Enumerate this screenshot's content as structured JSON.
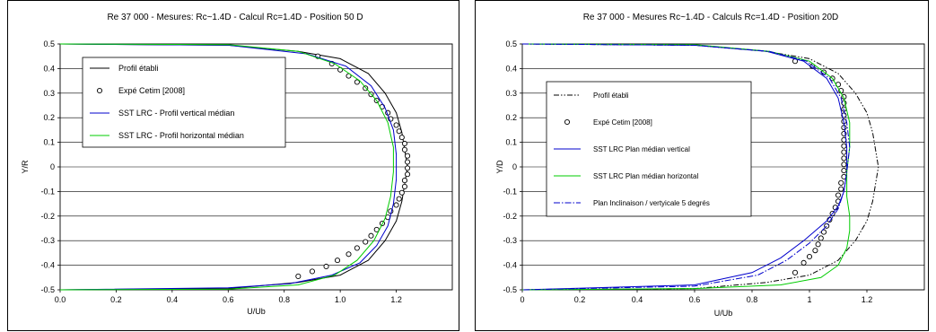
{
  "chart_data": [
    {
      "type": "line",
      "title": "Re 37 000 - Mesures: Rc~1.4D - Calcul Rc=1.4D - Position 50 D",
      "xlabel": "U/Ub",
      "ylabel": "Y/R",
      "xlim": [
        0,
        1.4
      ],
      "ylim": [
        -0.5,
        0.5
      ],
      "xticks": [
        "0.0",
        "0.2",
        "0.4",
        "0.6",
        "0.8",
        "1.0",
        "1.2"
      ],
      "yticks": [
        "0.5",
        "0.4",
        "0.3",
        "0.2",
        "0.1",
        "0",
        "-0.1",
        "-0.2",
        "-0.3",
        "-0.4",
        "-0.5"
      ],
      "grid": "horizontal",
      "legend_position": "top-left",
      "series": [
        {
          "name": "Profil établi",
          "style": "solid",
          "color": "#000000",
          "x": [
            0,
            0.6,
            0.85,
            1.0,
            1.1,
            1.16,
            1.2,
            1.22,
            1.23,
            1.24,
            1.23,
            1.22,
            1.2,
            1.16,
            1.1,
            1.0,
            0.85,
            0.6,
            0
          ],
          "y": [
            0.5,
            0.495,
            0.47,
            0.44,
            0.38,
            0.3,
            0.22,
            0.14,
            0.07,
            0,
            -0.07,
            -0.14,
            -0.22,
            -0.3,
            -0.38,
            -0.44,
            -0.47,
            -0.495,
            -0.5
          ]
        },
        {
          "name": "Expé Cetim [2008]",
          "style": "markers",
          "color": "#000000",
          "x": [
            0.92,
            0.97,
            1.0,
            1.03,
            1.06,
            1.09,
            1.11,
            1.13,
            1.15,
            1.17,
            1.18,
            1.2,
            1.21,
            1.22,
            1.23,
            1.23,
            1.24,
            1.24,
            1.24,
            1.24,
            1.23,
            1.23,
            1.22,
            1.21,
            1.2,
            1.18,
            1.17,
            1.15,
            1.13,
            1.11,
            1.09,
            1.06,
            1.03,
            0.99,
            0.95,
            0.9,
            0.85
          ],
          "y": [
            0.45,
            0.42,
            0.395,
            0.37,
            0.345,
            0.32,
            0.295,
            0.27,
            0.245,
            0.22,
            0.195,
            0.17,
            0.145,
            0.12,
            0.095,
            0.07,
            0.045,
            0.02,
            -0.005,
            -0.03,
            -0.055,
            -0.08,
            -0.105,
            -0.13,
            -0.155,
            -0.18,
            -0.205,
            -0.23,
            -0.255,
            -0.28,
            -0.305,
            -0.33,
            -0.355,
            -0.38,
            -0.405,
            -0.425,
            -0.445
          ]
        },
        {
          "name": "SST LRC - Profil vertical médian",
          "style": "solid",
          "color": "#0000CC",
          "x": [
            0,
            0.6,
            0.88,
            1.02,
            1.11,
            1.16,
            1.19,
            1.2,
            1.2,
            1.19,
            1.17,
            1.13,
            1.07,
            0.97,
            0.82,
            0.6,
            0
          ],
          "y": [
            0.5,
            0.495,
            0.46,
            0.41,
            0.33,
            0.24,
            0.15,
            0.05,
            -0.05,
            -0.15,
            -0.24,
            -0.32,
            -0.39,
            -0.44,
            -0.475,
            -0.492,
            -0.5
          ]
        },
        {
          "name": "SST LRC - Profil horizontal médian",
          "style": "solid",
          "color": "#00CC00",
          "x": [
            0,
            0.6,
            0.85,
            0.98,
            1.07,
            1.13,
            1.17,
            1.19,
            1.19,
            1.18,
            1.16,
            1.12,
            1.06,
            0.98,
            0.85,
            0.6,
            0
          ],
          "y": [
            0.5,
            0.497,
            0.47,
            0.42,
            0.35,
            0.27,
            0.18,
            0.08,
            -0.02,
            -0.12,
            -0.21,
            -0.3,
            -0.38,
            -0.44,
            -0.48,
            -0.497,
            -0.5
          ]
        }
      ],
      "legend_entries": [
        "Profil établi",
        "Expé Cetim [2008]",
        "SST LRC - Profil vertical médian",
        "SST LRC - Profil horizontal médian"
      ]
    },
    {
      "type": "line",
      "title": "Re 37 000 - Mesures Rc~1.4D - Calculs Rc=1.4D - Position 20D",
      "xlabel": "U/Ub",
      "ylabel": "Y/D",
      "xlim": [
        0,
        1.4
      ],
      "ylim": [
        -0.5,
        0.5
      ],
      "xticks": [
        "0",
        "0.2",
        "0.4",
        "0.6",
        "0.8",
        "1",
        "1.2"
      ],
      "yticks": [
        "0.5",
        "0.4",
        "0.3",
        "0.2",
        "0.1",
        "0",
        "-0.1",
        "-0.2",
        "-0.3",
        "-0.4",
        "-0.5"
      ],
      "grid": "horizontal",
      "legend_position": "center-left",
      "series": [
        {
          "name": "Profil établi",
          "style": "dash-dot-dot",
          "color": "#000000",
          "x": [
            0,
            0.6,
            0.85,
            1.0,
            1.1,
            1.16,
            1.2,
            1.22,
            1.23,
            1.24,
            1.23,
            1.22,
            1.2,
            1.16,
            1.1,
            1.0,
            0.85,
            0.6,
            0
          ],
          "y": [
            0.5,
            0.495,
            0.47,
            0.44,
            0.38,
            0.3,
            0.22,
            0.14,
            0.07,
            0,
            -0.07,
            -0.14,
            -0.22,
            -0.3,
            -0.38,
            -0.44,
            -0.47,
            -0.495,
            -0.5
          ]
        },
        {
          "name": "Expé Cetim [2008]",
          "style": "markers",
          "color": "#000000",
          "x": [
            0.95,
            1.01,
            1.05,
            1.08,
            1.1,
            1.11,
            1.12,
            1.12,
            1.12,
            1.12,
            1.12,
            1.12,
            1.12,
            1.12,
            1.12,
            1.12,
            1.12,
            1.12,
            1.12,
            1.12,
            1.11,
            1.11,
            1.1,
            1.1,
            1.09,
            1.08,
            1.07,
            1.06,
            1.05,
            1.04,
            1.03,
            1.02,
            1.0,
            0.98,
            0.95
          ],
          "y": [
            0.43,
            0.41,
            0.385,
            0.36,
            0.335,
            0.31,
            0.285,
            0.26,
            0.235,
            0.21,
            0.185,
            0.16,
            0.135,
            0.11,
            0.085,
            0.06,
            0.035,
            0.01,
            -0.015,
            -0.04,
            -0.065,
            -0.09,
            -0.115,
            -0.14,
            -0.165,
            -0.19,
            -0.215,
            -0.24,
            -0.265,
            -0.29,
            -0.315,
            -0.34,
            -0.365,
            -0.39,
            -0.43
          ]
        },
        {
          "name": "SST LRC Plan médian vertical",
          "style": "solid",
          "color": "#0000CC",
          "x": [
            0,
            0.6,
            0.85,
            0.98,
            1.06,
            1.1,
            1.12,
            1.13,
            1.13,
            1.12,
            1.1,
            1.06,
            0.98,
            0.9,
            0.8,
            0.6,
            0
          ],
          "y": [
            0.5,
            0.495,
            0.47,
            0.43,
            0.36,
            0.28,
            0.18,
            0.08,
            -0.02,
            -0.1,
            -0.16,
            -0.22,
            -0.3,
            -0.37,
            -0.43,
            -0.48,
            -0.5
          ]
        },
        {
          "name": "SST LRC Plan médian horizontal",
          "style": "solid",
          "color": "#00CC00",
          "x": [
            0,
            0.6,
            0.86,
            1.0,
            1.08,
            1.12,
            1.14,
            1.14,
            1.13,
            1.13,
            1.14,
            1.14,
            1.13,
            1.1,
            1.04,
            0.9,
            0.6,
            0
          ],
          "y": [
            0.5,
            0.497,
            0.47,
            0.43,
            0.36,
            0.28,
            0.18,
            0.08,
            -0.02,
            -0.12,
            -0.2,
            -0.26,
            -0.33,
            -0.4,
            -0.45,
            -0.48,
            -0.495,
            -0.5
          ]
        },
        {
          "name": "Plan Inclinaison / vertyicale 5 degrés",
          "style": "dash-dot",
          "color": "#0000CC",
          "x": [
            0,
            0.6,
            0.86,
            0.99,
            1.07,
            1.11,
            1.13,
            1.14,
            1.13,
            1.12,
            1.1,
            1.06,
            1.0,
            0.92,
            0.82,
            0.6,
            0
          ],
          "y": [
            0.5,
            0.495,
            0.47,
            0.43,
            0.36,
            0.28,
            0.18,
            0.08,
            -0.02,
            -0.1,
            -0.17,
            -0.24,
            -0.31,
            -0.38,
            -0.44,
            -0.485,
            -0.5
          ]
        }
      ],
      "legend_entries": [
        "Profil établi",
        "Expé Cetim [2008]",
        "SST LRC Plan médian vertical",
        "SST LRC Plan médian horizontal",
        "Plan Inclinaison / vertyicale 5 degrés"
      ]
    }
  ]
}
